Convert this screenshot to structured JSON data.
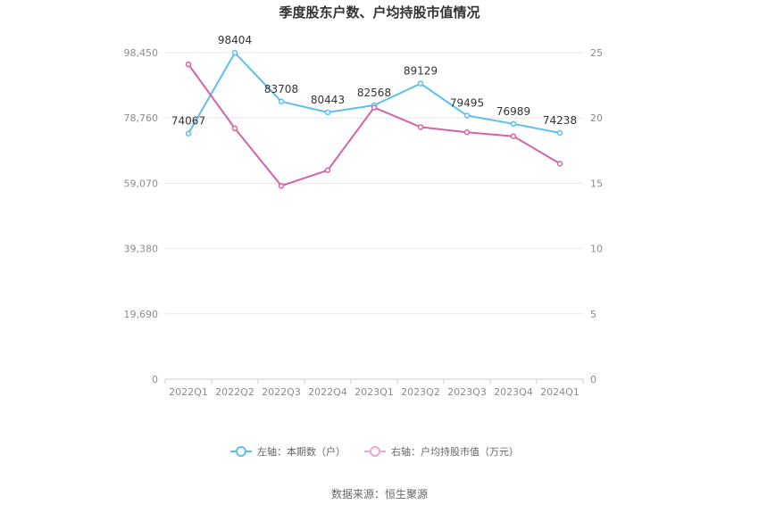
{
  "chart_data": {
    "type": "line",
    "title": "季度股东户数、户均持股市值情况",
    "categories": [
      "2022Q1",
      "2022Q2",
      "2022Q3",
      "2022Q4",
      "2023Q1",
      "2023Q2",
      "2023Q3",
      "2023Q4",
      "2024Q1"
    ],
    "left_axis": {
      "ticks": [
        "0",
        "19,690",
        "39,380",
        "59,070",
        "78,760",
        "98,450"
      ],
      "ylim": [
        0,
        98450
      ]
    },
    "right_axis": {
      "ticks": [
        "0",
        "5",
        "10",
        "15",
        "20",
        "25"
      ],
      "ylim": [
        0,
        25
      ]
    },
    "series": [
      {
        "name": "左轴：本期数（户）",
        "axis": "left",
        "color": "#5bc0eb",
        "values": [
          74067,
          98404,
          83708,
          80443,
          82568,
          89129,
          79495,
          76989,
          74238
        ],
        "labels": [
          "74067",
          "98404",
          "83708",
          "80443",
          "82568",
          "89129",
          "79495",
          "76989",
          "74238"
        ]
      },
      {
        "name": "右轴：户均持股市值（万元）",
        "axis": "right",
        "color": "#d462a6",
        "values": [
          24.1,
          19.2,
          14.8,
          16.0,
          20.8,
          19.3,
          18.9,
          18.6,
          16.5
        ]
      }
    ],
    "legend_position": "bottom-center",
    "grid": true
  },
  "footer": {
    "source": "数据来源：恒生聚源"
  }
}
